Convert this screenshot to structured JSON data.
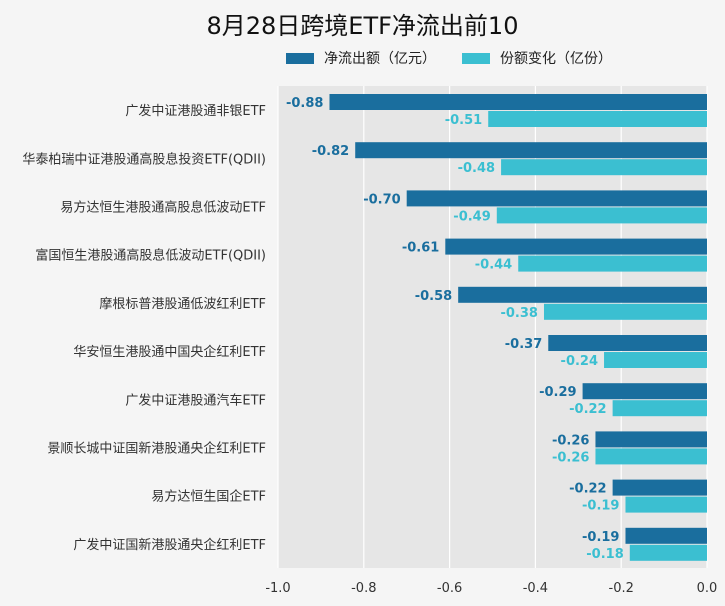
{
  "chart_data": {
    "type": "bar",
    "orientation": "horizontal",
    "title": "8月28日跨境ETF净流出前10",
    "categories": [
      "广发中证港股通非银ETF",
      "华泰柏瑞中证港股通高股息投资ETF(QDII)",
      "易方达恒生港股通高股息低波动ETF",
      "富国恒生港股通高股息低波动ETF(QDII)",
      "摩根标普港股通低波红利ETF",
      "华安恒生港股通中国央企红利ETF",
      "广发中证港股通汽车ETF",
      "景顺长城中证国新港股通央企红利ETF",
      "易方达恒生国企ETF",
      "广发中证国新港股通央企红利ETF"
    ],
    "series": [
      {
        "name": "净流出额（亿元）",
        "color": "#1a6e9e",
        "values": [
          -0.88,
          -0.82,
          -0.7,
          -0.61,
          -0.58,
          -0.37,
          -0.29,
          -0.26,
          -0.22,
          -0.19
        ]
      },
      {
        "name": "份额变化（亿份）",
        "color": "#3bbfd1",
        "values": [
          -0.51,
          -0.48,
          -0.49,
          -0.44,
          -0.38,
          -0.24,
          -0.22,
          -0.26,
          -0.19,
          -0.18
        ]
      }
    ],
    "xlim": [
      -1.0,
      0.0
    ],
    "xticks": [
      "-1.0",
      "-0.8",
      "-0.6",
      "-0.4",
      "-0.2",
      "0.0"
    ],
    "grid": true,
    "legend_position": "top"
  }
}
